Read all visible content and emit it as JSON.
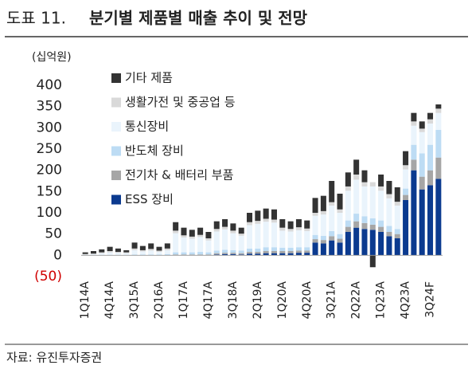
{
  "chart_data": {
    "type": "stacked_bar",
    "figure_label": "도표 11.",
    "title": "분기별 제품별 매출 추이 및 전망",
    "y_unit": "(십억원)",
    "source": "자료: 유진투자증권",
    "categories": [
      "1Q14A",
      null,
      null,
      "4Q14A",
      null,
      null,
      "3Q15A",
      null,
      null,
      "2Q16A",
      null,
      null,
      "1Q17A",
      null,
      null,
      "4Q17A",
      null,
      null,
      "3Q18A",
      null,
      null,
      "2Q19A",
      null,
      null,
      "1Q20A",
      null,
      null,
      "4Q20A",
      null,
      null,
      "3Q21A",
      null,
      null,
      "2Q22A",
      null,
      null,
      "1Q23A",
      null,
      null,
      "4Q23A",
      null,
      null,
      "3Q24F",
      null
    ],
    "series": [
      {
        "name": "ESS 장비",
        "color": "#0b3a8f",
        "values": [
          0,
          0,
          0,
          0,
          0,
          0,
          0,
          0,
          0,
          0,
          0,
          0,
          0,
          0,
          0,
          0,
          2,
          3,
          3,
          2,
          4,
          4,
          5,
          5,
          5,
          5,
          6,
          6,
          30,
          28,
          35,
          30,
          55,
          65,
          62,
          60,
          55,
          45,
          40,
          130,
          200,
          155,
          165,
          180
        ]
      },
      {
        "name": "전기차 & 배터리 부품",
        "color": "#a6a6a6",
        "values": [
          0,
          0,
          0,
          0,
          0,
          0,
          0,
          0,
          0,
          0,
          0,
          2,
          2,
          2,
          2,
          2,
          3,
          3,
          3,
          3,
          4,
          4,
          5,
          5,
          5,
          5,
          5,
          5,
          8,
          8,
          10,
          9,
          12,
          15,
          14,
          12,
          12,
          10,
          10,
          12,
          25,
          30,
          35,
          50
        ]
      },
      {
        "name": "반도체 장비",
        "color": "#bddcf4",
        "values": [
          0,
          0,
          1,
          1,
          1,
          1,
          2,
          2,
          2,
          2,
          3,
          5,
          5,
          5,
          6,
          5,
          6,
          7,
          6,
          6,
          8,
          8,
          9,
          9,
          8,
          8,
          8,
          8,
          10,
          10,
          12,
          11,
          15,
          18,
          16,
          15,
          15,
          14,
          12,
          15,
          35,
          55,
          60,
          65
        ]
      },
      {
        "name": "통신장비",
        "color": "#eaf4fc",
        "values": [
          2,
          3,
          4,
          6,
          5,
          4,
          10,
          7,
          9,
          6,
          9,
          45,
          35,
          32,
          35,
          28,
          45,
          48,
          40,
          35,
          55,
          58,
          60,
          58,
          40,
          38,
          40,
          38,
          45,
          50,
          60,
          50,
          70,
          80,
          70,
          75,
          70,
          65,
          55,
          45,
          45,
          50,
          50,
          40
        ]
      },
      {
        "name": "생활가전 및 중공업 등",
        "color": "#d9d9d9",
        "values": [
          1,
          1,
          2,
          3,
          2,
          2,
          4,
          3,
          4,
          3,
          4,
          6,
          5,
          5,
          5,
          5,
          6,
          6,
          6,
          5,
          7,
          7,
          7,
          7,
          7,
          6,
          7,
          6,
          7,
          8,
          8,
          8,
          10,
          12,
          10,
          10,
          10,
          10,
          9,
          10,
          10,
          8,
          10,
          10
        ]
      },
      {
        "name": "기타 제품",
        "color": "#333333",
        "values": [
          4,
          6,
          7,
          10,
          8,
          5,
          14,
          10,
          13,
          9,
          12,
          20,
          18,
          16,
          17,
          15,
          18,
          18,
          17,
          14,
          22,
          24,
          24,
          24,
          20,
          18,
          19,
          19,
          35,
          36,
          50,
          37,
          33,
          35,
          28,
          -28,
          28,
          31,
          34,
          33,
          20,
          17,
          15,
          10
        ]
      }
    ],
    "ylim": [
      -50,
      400
    ],
    "yticks": [
      {
        "value": -50,
        "label": "(50)"
      },
      0,
      50,
      100,
      150,
      200,
      250,
      300,
      350,
      400
    ]
  }
}
